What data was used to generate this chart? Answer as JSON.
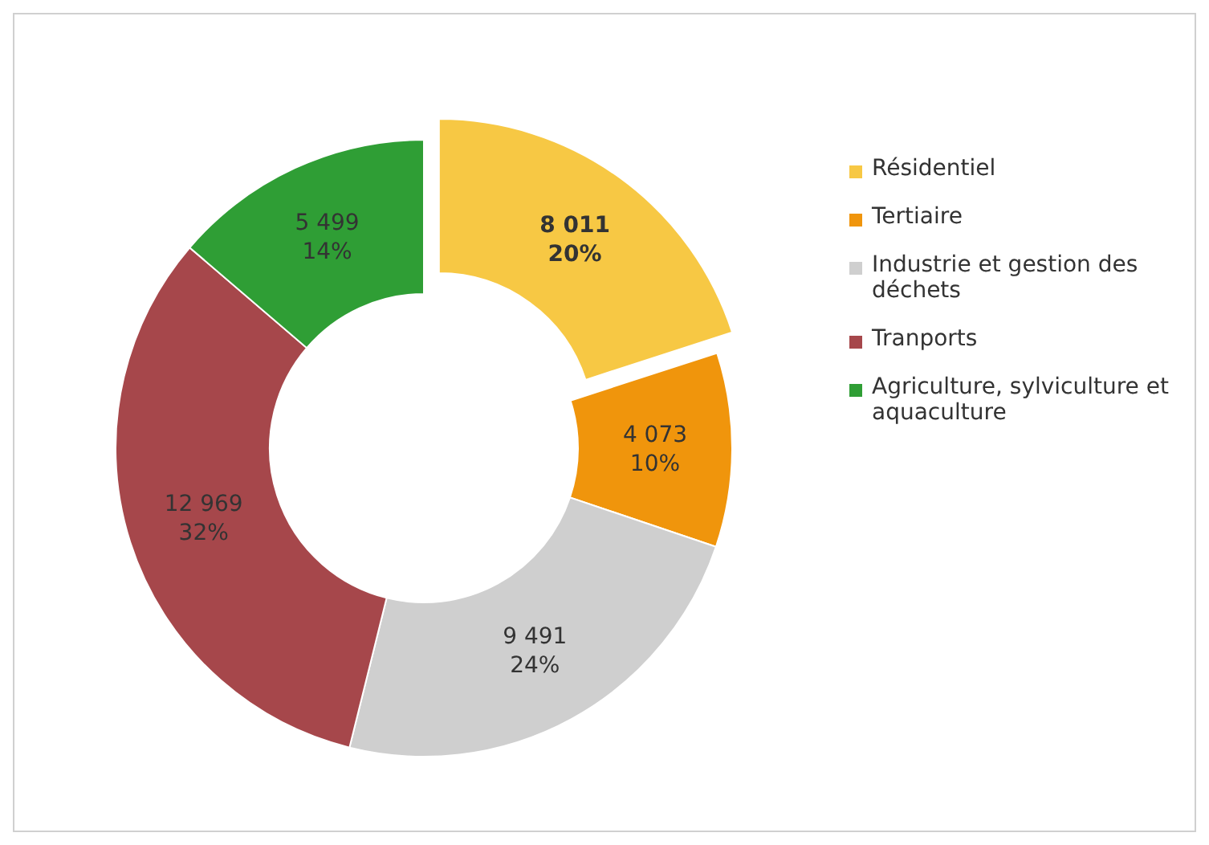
{
  "chart_data": {
    "type": "donut",
    "categories": [
      "Résidentiel",
      "Tertiaire",
      "Industrie et gestion des déchets",
      "Tranports",
      "Agriculture, sylviculture et aquaculture"
    ],
    "values": [
      8011,
      4073,
      9491,
      12969,
      5499
    ],
    "colors": [
      "#f7c844",
      "#f0950c",
      "#cfcfcf",
      "#a6474b",
      "#2f9e35"
    ],
    "value_labels": [
      "8 011\n20%",
      "4 073\n10%",
      "9 491\n24%",
      "12 969\n32%",
      "5 499\n14%"
    ],
    "legend": "right"
  }
}
